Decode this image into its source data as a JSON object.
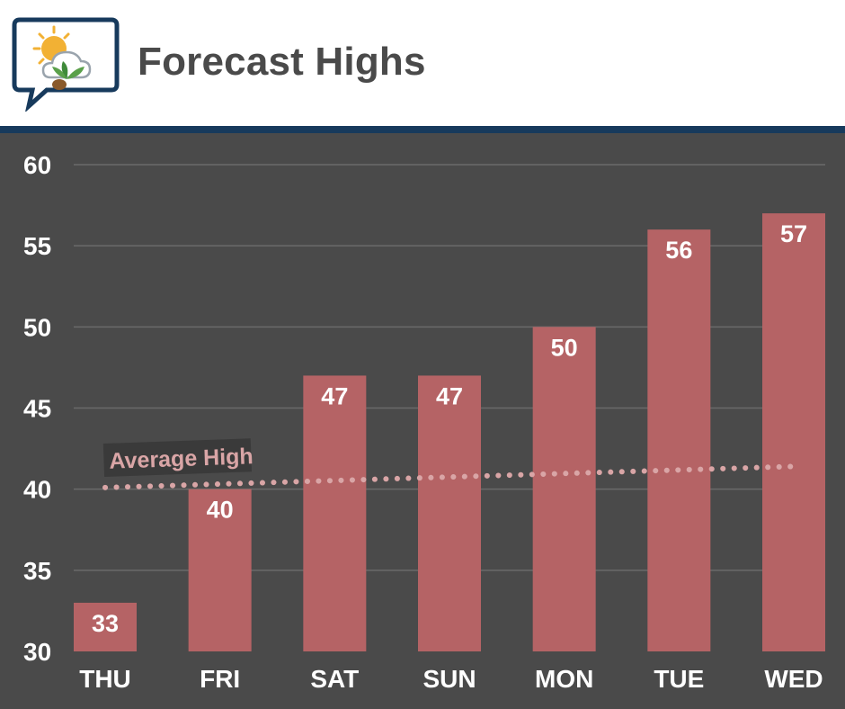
{
  "header": {
    "title": "Forecast Highs",
    "logo_icon": "weather-logo-icon"
  },
  "colors": {
    "header_bg": "#ffffff",
    "accent_rule": "#173a5c",
    "chart_bg": "#4a4a4a",
    "bar": "#b56365",
    "text": "#ffffff",
    "avg_line": "#d9a5a6",
    "grid": "#6a6a6a"
  },
  "chart_data": {
    "type": "bar",
    "categories": [
      "THU",
      "FRI",
      "SAT",
      "SUN",
      "MON",
      "TUE",
      "WED"
    ],
    "values": [
      33,
      40,
      47,
      47,
      50,
      56,
      57
    ],
    "ylim": [
      30,
      60
    ],
    "yticks": [
      30,
      35,
      40,
      45,
      50,
      55,
      60
    ],
    "grid": true,
    "data_labels": true,
    "title": "",
    "xlabel": "",
    "ylabel": "",
    "overlay": {
      "type": "line",
      "name": "Average High",
      "style": "dotted",
      "start": {
        "x": "THU",
        "y": 40.1
      },
      "end": {
        "x": "WED",
        "y": 41.4
      }
    }
  }
}
